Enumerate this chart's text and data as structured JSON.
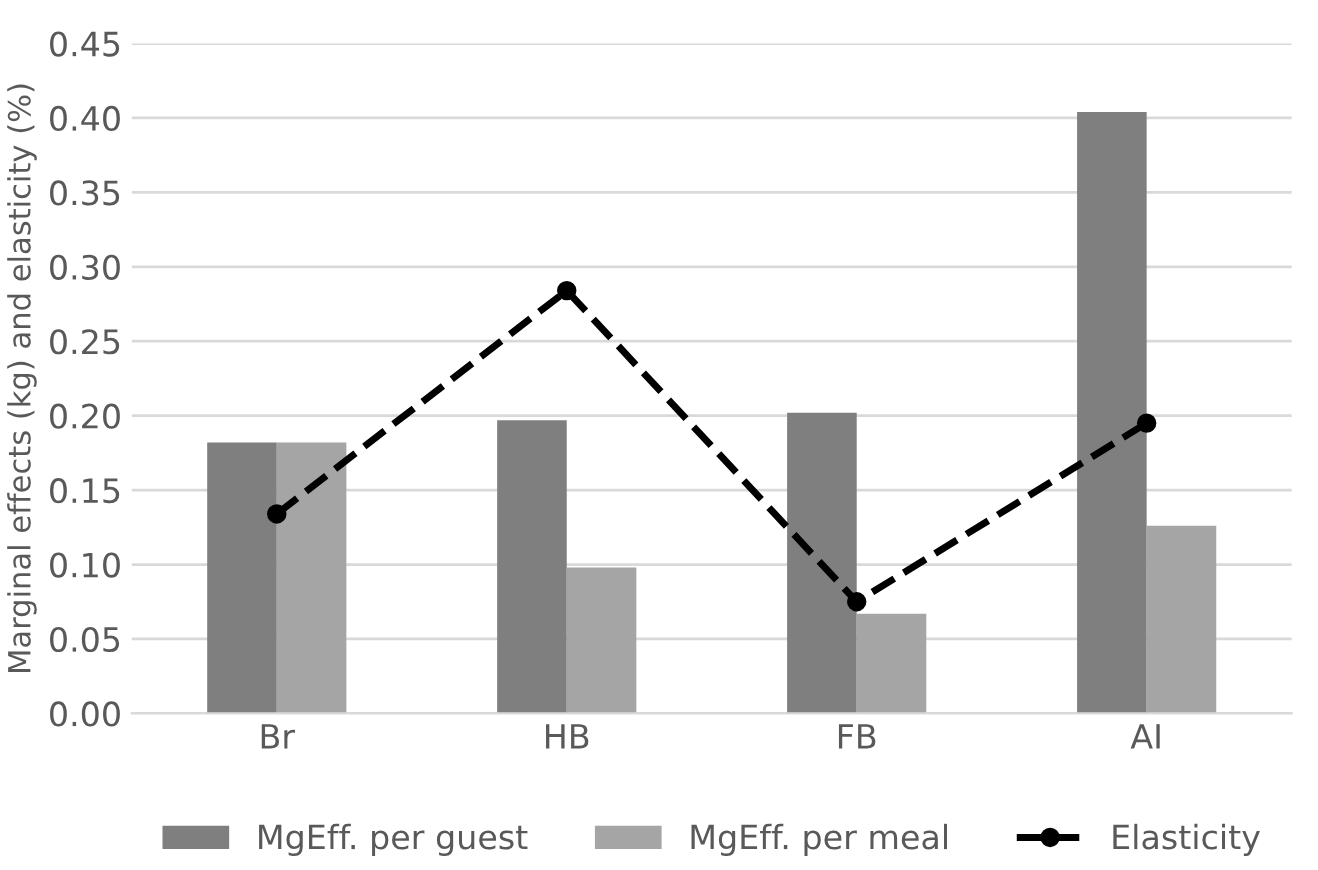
{
  "chart_data": {
    "type": "bar",
    "ylabel": "Marginal effects (kg) and elasticity (%)",
    "categories": [
      "Br",
      "HB",
      "FB",
      "AI"
    ],
    "series": [
      {
        "name": "MgEff. per guest",
        "color": "#7f7f7f",
        "values": [
          0.182,
          0.197,
          0.202,
          0.404
        ]
      },
      {
        "name": "MgEff. per meal",
        "color": "#a5a5a5",
        "values": [
          0.182,
          0.098,
          0.067,
          0.126
        ]
      },
      {
        "name": "Elasticity",
        "type": "line",
        "color": "#000000",
        "marker": "circle",
        "line_style": "dashed",
        "values": [
          0.134,
          0.284,
          0.075,
          0.195
        ]
      }
    ],
    "ylim": [
      0,
      0.45
    ],
    "yticks": [
      {
        "value": 0,
        "label": "0.00"
      },
      {
        "value": 0.05,
        "label": "0.05"
      },
      {
        "value": 0.1,
        "label": "0.10"
      },
      {
        "value": 0.15,
        "label": "0.15"
      },
      {
        "value": 0.2,
        "label": "0.20"
      },
      {
        "value": 0.25,
        "label": "0.25"
      },
      {
        "value": 0.3,
        "label": "0.30"
      },
      {
        "value": 0.35,
        "label": "0.35"
      },
      {
        "value": 0.4,
        "label": "0.40"
      },
      {
        "value": 0.45,
        "label": "0.45"
      }
    ],
    "grid": "y",
    "legend": "bottom"
  }
}
